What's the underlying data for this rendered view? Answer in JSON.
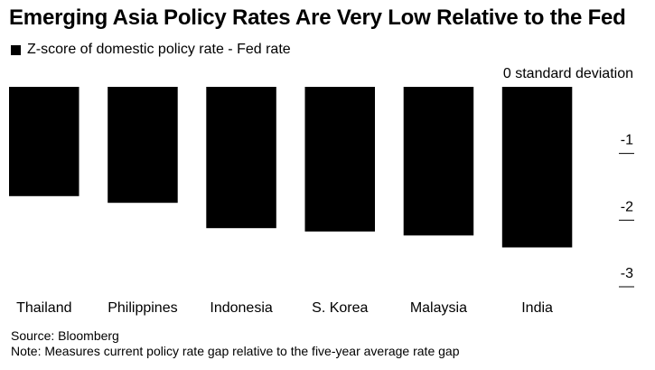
{
  "title": "Emerging Asia Policy Rates Are Very Low Relative to the Fed",
  "legend": {
    "label": "Z-score of domestic policy rate - Fed rate"
  },
  "chart_data": {
    "type": "bar",
    "title": "Emerging Asia Policy Rates Are Very Low Relative to the Fed",
    "categories": [
      "Thailand",
      "Philippines",
      "Indonesia",
      "S. Korea",
      "Malaysia",
      "India"
    ],
    "series": [
      {
        "name": "Z-score of domestic policy rate - Fed rate",
        "values": [
          -1.64,
          -1.74,
          -2.12,
          -2.17,
          -2.23,
          -2.41
        ],
        "color": "#000000"
      }
    ],
    "ylim": [
      -3,
      0
    ],
    "yticks": [
      0,
      -1,
      -2,
      -3
    ],
    "ytick_labels": [
      "0 standard deviation",
      "-1",
      "-2",
      "-3"
    ],
    "xlabel": "",
    "ylabel": "",
    "y_axis_side": "right",
    "grid": false
  },
  "footer": {
    "source": "Source: Bloomberg",
    "note": "Note: Measures current policy rate gap relative to the five-year average rate gap"
  }
}
